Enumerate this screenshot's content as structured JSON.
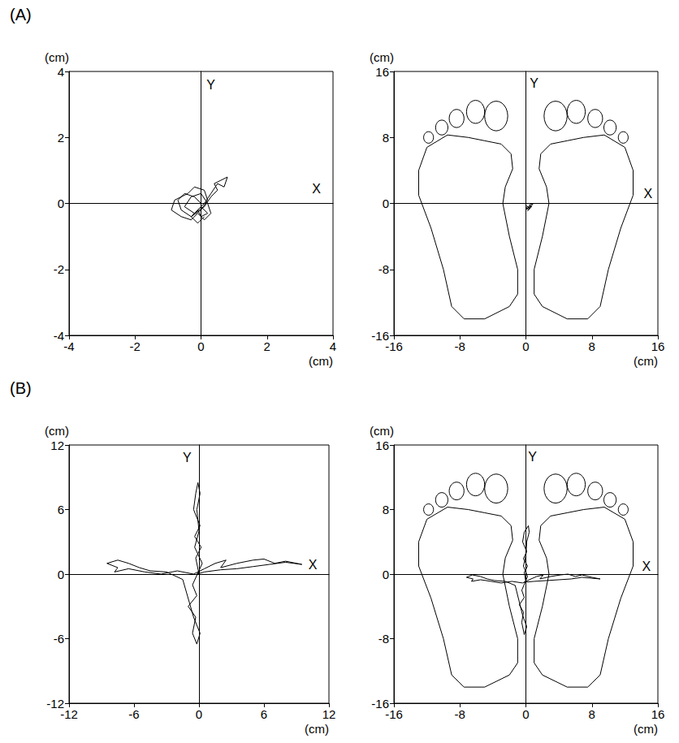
{
  "chart_data": [
    {
      "type": "line",
      "title": "(A)",
      "xlabel": "(cm)",
      "ylabel": "(cm)",
      "color": "#000000",
      "grid": false,
      "xlim": [
        -4,
        4
      ],
      "ylim": [
        -4,
        4
      ],
      "xticks": [
        -4,
        -2,
        0,
        2,
        4
      ],
      "yticks": [
        -4,
        -2,
        0,
        2,
        4
      ],
      "annotations": [
        {
          "text": "X",
          "x": 3.5,
          "y": 0.45
        },
        {
          "text": "Y",
          "x": 0.3,
          "y": 3.6
        }
      ],
      "x": [
        0.0,
        -0.2,
        -0.5,
        -0.7,
        -0.6,
        -0.3,
        0.0,
        0.2,
        0.1,
        -0.2,
        -0.4,
        -0.8,
        -0.9,
        -0.6,
        -0.3,
        -0.1,
        0.1,
        0.3,
        0.2,
        0.0,
        -0.3,
        -0.5,
        -0.2,
        0.1,
        0.3,
        0.5,
        0.4,
        0.6,
        0.8,
        0.7,
        0.5,
        0.3,
        0.1,
        -0.1,
        0.0,
        0.2,
        0.0,
        -0.3,
        -0.1,
        0.1
      ],
      "values": [
        0.0,
        0.2,
        0.3,
        0.1,
        -0.2,
        -0.4,
        -0.2,
        0.1,
        0.4,
        0.5,
        0.3,
        0.1,
        -0.2,
        -0.4,
        -0.5,
        -0.3,
        -0.5,
        -0.3,
        0.0,
        0.3,
        0.2,
        -0.1,
        -0.3,
        -0.1,
        0.2,
        0.4,
        0.6,
        0.7,
        0.8,
        0.5,
        0.6,
        0.3,
        0.0,
        -0.2,
        -0.4,
        -0.3,
        -0.1,
        -0.4,
        -0.6,
        -0.4
      ]
    },
    {
      "type": "line",
      "xlabel": "(cm)",
      "ylabel": "(cm)",
      "color": "#000000",
      "grid": false,
      "xlim": [
        -16,
        16
      ],
      "ylim": [
        -16,
        16
      ],
      "xticks": [
        -16,
        -8,
        0,
        8,
        16
      ],
      "yticks": [
        -16,
        -8,
        0,
        8,
        16
      ],
      "annotations": [
        {
          "text": "X",
          "x": 14.8,
          "y": 1.2
        },
        {
          "text": "Y",
          "x": 1.0,
          "y": 14.6
        }
      ],
      "x": [
        0.0,
        0.3,
        0.1,
        0.5,
        0.2,
        0.7,
        0.4,
        0.9,
        0.5,
        0.2,
        0.0,
        0.3,
        0.6,
        0.2
      ],
      "values": [
        -0.8,
        -0.5,
        -0.3,
        -0.6,
        -0.9,
        -0.4,
        -0.2,
        0.0,
        -0.5,
        -0.7,
        -0.5,
        -0.4,
        -0.3,
        -0.6
      ]
    },
    {
      "type": "line",
      "title": "(B)",
      "xlabel": "(cm)",
      "ylabel": "(cm)",
      "color": "#000000",
      "grid": false,
      "xlim": [
        -12,
        12
      ],
      "ylim": [
        -12,
        12
      ],
      "xticks": [
        -12,
        -6,
        0,
        6,
        12
      ],
      "yticks": [
        -12,
        -6,
        0,
        6,
        12
      ],
      "annotations": [
        {
          "text": "X",
          "x": 10.5,
          "y": 0.9
        },
        {
          "text": "Y",
          "x": -1.1,
          "y": 10.8
        }
      ],
      "x": [
        0,
        -0.3,
        0.2,
        -0.4,
        0.1,
        -0.5,
        -0.3,
        -0.1,
        0.1,
        -0.2,
        0.0,
        -0.4,
        0.3,
        -0.6,
        -0.2,
        -1.0,
        -0.3,
        -0.6,
        -0.2,
        0.1,
        -0.5,
        -1.5,
        -3,
        -4.5,
        -5.5,
        -6.5,
        -7.5,
        -8.5,
        -7.5,
        -7.8,
        -6.5,
        -5,
        -3.5,
        -2,
        -0.5,
        0.5,
        1.5,
        2.5,
        2.0,
        3.5,
        5,
        6,
        7,
        8,
        9.5,
        8,
        6.5,
        5,
        3.5,
        2,
        0.5,
        -0.2,
        0.0
      ],
      "values": [
        0,
        1.5,
        2.5,
        3.5,
        4.5,
        6,
        7.5,
        8.5,
        7.5,
        6,
        4,
        2.5,
        1,
        -1,
        -2,
        -3,
        -4,
        -5.5,
        -6.5,
        -5.5,
        -4,
        -0.5,
        0.2,
        0.3,
        0.6,
        1.0,
        1.3,
        1.0,
        0.6,
        0.2,
        0.5,
        0.2,
        0.0,
        0.3,
        0.0,
        0.5,
        1.0,
        1.3,
        0.6,
        1.0,
        1.3,
        1.4,
        1.0,
        1.2,
        0.9,
        1.1,
        0.9,
        0.7,
        0.5,
        0.4,
        0.2,
        0.0,
        0.0
      ]
    },
    {
      "type": "line",
      "xlabel": "(cm)",
      "ylabel": "(cm)",
      "color": "#000000",
      "grid": false,
      "xlim": [
        -16,
        16
      ],
      "ylim": [
        -16,
        16
      ],
      "xticks": [
        -16,
        -8,
        0,
        8,
        16
      ],
      "yticks": [
        -16,
        -8,
        0,
        8,
        16
      ],
      "annotations": [
        {
          "text": "X",
          "x": 14.6,
          "y": 1.0
        },
        {
          "text": "Y",
          "x": 0.8,
          "y": 14.5
        }
      ],
      "x": [
        0,
        -0.2,
        0.2,
        -0.3,
        0.1,
        -0.4,
        -0.2,
        0.3,
        0.4,
        0.1,
        0.0,
        -0.3,
        0.2,
        -0.5,
        -0.2,
        -0.8,
        -0.3,
        -0.5,
        -0.2,
        0.1,
        -0.4,
        -1.3,
        -2.5,
        -3.8,
        -4.7,
        -5.5,
        -6.5,
        -7.2,
        -6.4,
        -6.6,
        -5.5,
        -4.2,
        -3,
        -1.7,
        -0.4,
        0.4,
        1.3,
        2.1,
        1.7,
        3,
        4.2,
        5.1,
        6,
        6.8,
        8,
        9,
        6.8,
        5.5,
        4,
        2.5,
        1,
        -0.2,
        0.0
      ],
      "values": [
        -1,
        0.2,
        1.0,
        1.9,
        2.8,
        4,
        5.2,
        6,
        5.2,
        4,
        2.3,
        1,
        -0.3,
        -2,
        -2.9,
        -3.8,
        -4.7,
        -6,
        -7.5,
        -6.5,
        -5.1,
        -1.4,
        -0.9,
        -0.8,
        -0.6,
        -0.3,
        -0.1,
        -0.4,
        -0.6,
        -0.9,
        -0.7,
        -0.9,
        -1.1,
        -0.9,
        -1.1,
        -0.7,
        -0.3,
        -0.1,
        -0.6,
        -0.3,
        -0.1,
        0.0,
        -0.3,
        -0.1,
        -0.4,
        -0.6,
        -0.4,
        -0.6,
        -0.7,
        -0.8,
        -0.9,
        -1.0,
        -1.0
      ]
    }
  ]
}
